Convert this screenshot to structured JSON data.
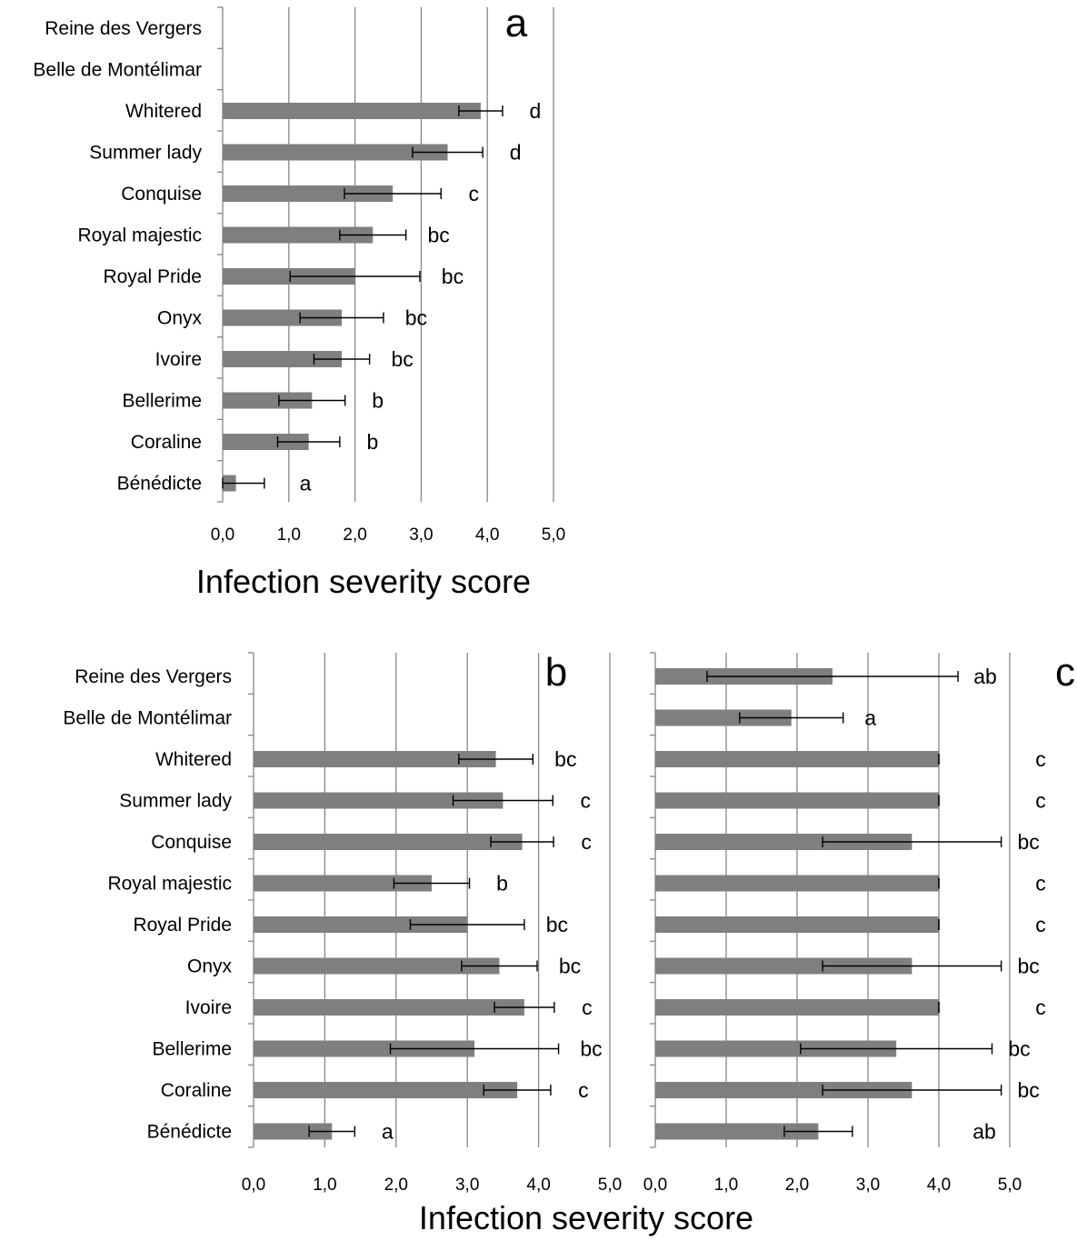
{
  "chart_data": [
    {
      "type": "bar",
      "panel": "a",
      "orientation": "horizontal",
      "categories": [
        "Reine des Vergers",
        "Belle de Montélimar",
        "Whitered",
        "Summer lady",
        "Conquise",
        "Royal majestic",
        "Royal Pride",
        "Onyx",
        "Ivoire",
        "Bellerime",
        "Coraline",
        "Bénédicte"
      ],
      "values": [
        null,
        null,
        3.9,
        3.4,
        2.57,
        2.27,
        2.0,
        1.8,
        1.8,
        1.35,
        1.3,
        0.2
      ],
      "errors": [
        null,
        null,
        0.33,
        0.53,
        0.73,
        0.5,
        0.98,
        0.63,
        0.42,
        0.5,
        0.47,
        0.43
      ],
      "significance": [
        "",
        "",
        "d",
        "d",
        "c",
        "bc",
        "bc",
        "bc",
        "bc",
        "b",
        "b",
        "a"
      ],
      "xlim": [
        0,
        5
      ],
      "xticks": [
        "0,0",
        "1,0",
        "2,0",
        "3,0",
        "4,0",
        "5,0"
      ],
      "xlabel": "Infection severity score",
      "grid": true
    },
    {
      "type": "bar",
      "panel": "b",
      "orientation": "horizontal",
      "categories": [
        "Reine des Vergers",
        "Belle de Montélimar",
        "Whitered",
        "Summer lady",
        "Conquise",
        "Royal majestic",
        "Royal Pride",
        "Onyx",
        "Ivoire",
        "Bellerime",
        "Coraline",
        "Bénédicte"
      ],
      "values": [
        null,
        null,
        3.4,
        3.5,
        3.77,
        2.5,
        3.0,
        3.45,
        3.8,
        3.1,
        3.7,
        1.1
      ],
      "errors": [
        null,
        null,
        0.52,
        0.7,
        0.44,
        0.53,
        0.8,
        0.53,
        0.42,
        1.18,
        0.47,
        0.32
      ],
      "significance": [
        "",
        "",
        "bc",
        "c",
        "c",
        "b",
        "bc",
        "bc",
        "c",
        "bc",
        "c",
        "a"
      ],
      "xlim": [
        0,
        5
      ],
      "xticks": [
        "0,0",
        "1,0",
        "2,0",
        "3,0",
        "4,0",
        "5,0"
      ],
      "grid": true
    },
    {
      "type": "bar",
      "panel": "c",
      "orientation": "horizontal",
      "categories": [
        "Reine des Vergers",
        "Belle de Montélimar",
        "Whitered",
        "Summer lady",
        "Conquise",
        "Royal majestic",
        "Royal Pride",
        "Onyx",
        "Ivoire",
        "Bellerime",
        "Coraline",
        "Bénédicte"
      ],
      "values": [
        2.5,
        1.92,
        4.0,
        4.0,
        3.62,
        4.0,
        4.0,
        3.62,
        4.0,
        3.4,
        3.62,
        2.3
      ],
      "errors": [
        1.77,
        0.73,
        0,
        0,
        1.26,
        0,
        0,
        1.26,
        0,
        1.35,
        1.26,
        0.48
      ],
      "significance": [
        "ab",
        "a",
        "c",
        "c",
        "bc",
        "c",
        "c",
        "bc",
        "c",
        "bc",
        "bc",
        "ab"
      ],
      "xlim": [
        0,
        5
      ],
      "xticks": [
        "0,0",
        "1,0",
        "2,0",
        "3,0",
        "4,0",
        "5,0"
      ],
      "grid": true
    }
  ],
  "shared_xlabel": "Infection severity score",
  "colors": {
    "bar": "#7f7f7f",
    "grid": "#868686",
    "axis": "#868686",
    "errorbar": "#000000"
  }
}
